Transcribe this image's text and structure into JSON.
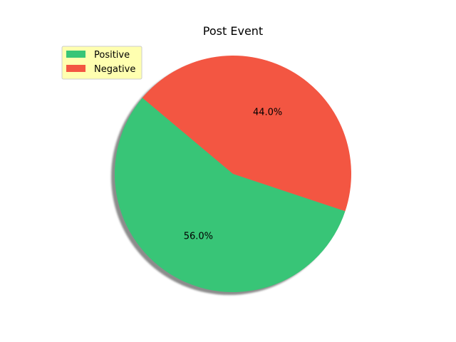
{
  "chart_data": {
    "type": "pie",
    "title": "Post Event",
    "labels": [
      "Positive",
      "Negative"
    ],
    "values": [
      56.0,
      44.0
    ],
    "value_labels": [
      "56.0%",
      "44.0%"
    ],
    "colors": [
      "#38c577",
      "#f35642"
    ],
    "start_angle_deg": 140,
    "counterclock": true,
    "shadow": true,
    "legend": {
      "placement": "upper-left",
      "entries": [
        "Positive",
        "Negative"
      ],
      "background": "#ffffb0"
    }
  }
}
